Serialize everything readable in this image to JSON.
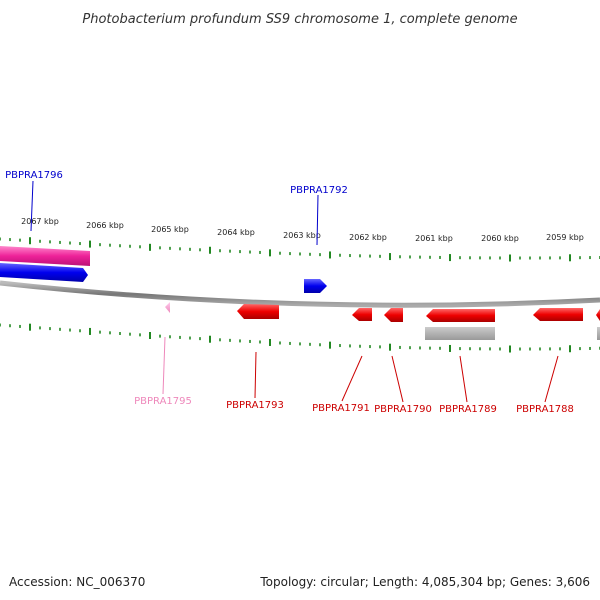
{
  "title": "Photobacterium profundum SS9 chromosome 1, complete genome",
  "kbp_ticks": [
    {
      "kbp": 2067,
      "label": "2067 kbp"
    },
    {
      "kbp": 2066,
      "label": "2066 kbp"
    },
    {
      "kbp": 2065,
      "label": "2065 kbp"
    },
    {
      "kbp": 2064,
      "label": "2064 kbp"
    },
    {
      "kbp": 2063,
      "label": "2063 kbp"
    },
    {
      "kbp": 2062,
      "label": "2062 kbp"
    },
    {
      "kbp": 2061,
      "label": "2061 kbp"
    },
    {
      "kbp": 2060,
      "label": "2060 kbp"
    },
    {
      "kbp": 2059,
      "label": "2059 kbp"
    }
  ],
  "genes": [
    {
      "name": "PBPRA1796",
      "color": "#0000cc"
    },
    {
      "name": "PBPRA1795",
      "color": "#ee88bb"
    },
    {
      "name": "PBPRA1793",
      "color": "#cc0000"
    },
    {
      "name": "PBPRA1792",
      "color": "#0000cc"
    },
    {
      "name": "PBPRA1791",
      "color": "#cc0000"
    },
    {
      "name": "PBPRA1790",
      "color": "#cc0000"
    },
    {
      "name": "PBPRA1789",
      "color": "#cc0000"
    },
    {
      "name": "PBPRA1788",
      "color": "#cc0000"
    }
  ],
  "footer": {
    "accession": "Accession: NC_006370",
    "summary": "Topology: circular; Length: 4,085,304 bp; Genes: 3,606"
  },
  "colors": {
    "backbone": "#808080",
    "tick": "#228822",
    "forward_gene": "#0000ee",
    "reverse_gene": "#ee0000",
    "pink_gene": "#ee4499",
    "grey_feature": "#aaaaaa"
  }
}
